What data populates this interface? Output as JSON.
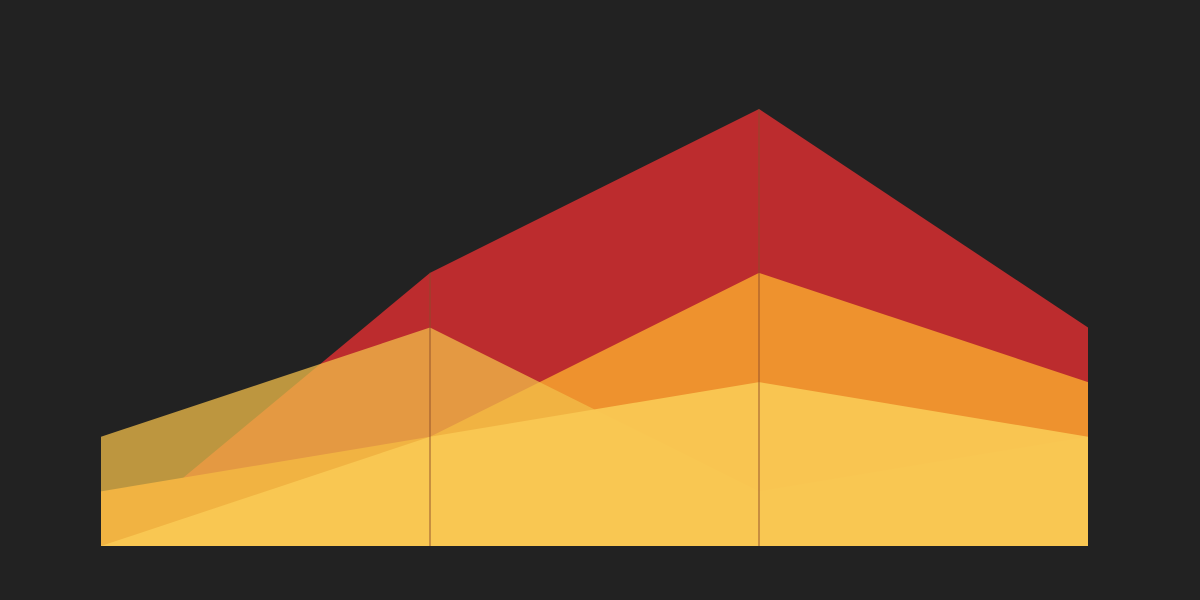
{
  "chart_data": {
    "type": "area",
    "title": "",
    "xlabel": "",
    "ylabel": "",
    "x": [
      0,
      1,
      2,
      3
    ],
    "ylim": [
      0,
      8
    ],
    "grid": false,
    "legend": "none",
    "series": [
      {
        "values": [
          0,
          5,
          8,
          4
        ],
        "color": "#BC2C2E"
      },
      {
        "values": [
          1,
          2,
          5,
          3
        ],
        "color": "#EE922E"
      },
      {
        "values": [
          2,
          4,
          1,
          2
        ],
        "color": "#F2BE49"
      },
      {
        "values": [
          0,
          2,
          3,
          2
        ],
        "color": "#F9C853"
      }
    ],
    "colors": {
      "background": "#222222",
      "divider": "#8C4A2A"
    }
  }
}
